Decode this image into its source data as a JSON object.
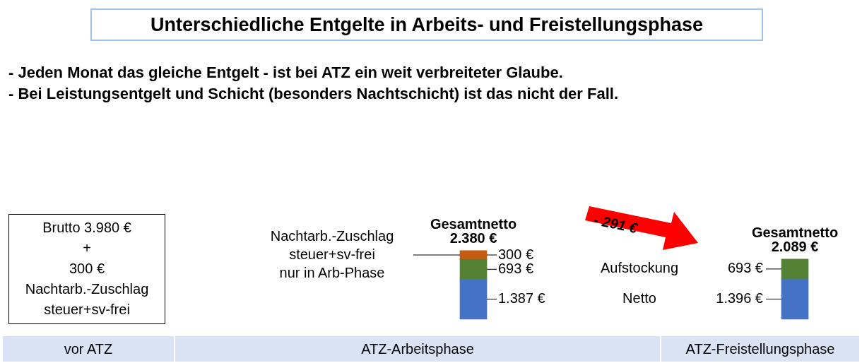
{
  "chart_data": {
    "type": "bar",
    "stacked": true,
    "title": "Unterschiedliche Entgelte in Arbeits- und Freistellungsphase",
    "subtitle": "- Jeden Monat das gleiche Entgelt - ist bei ATZ ein weit verbreiteter Glaube.\n- Bei Leistungsentgelt und Schicht (besonders Nachtschicht) ist das nicht der Fall.",
    "categories": [
      null,
      null
    ],
    "series": [
      {
        "color": "#4472c4",
        "values": [
          1387,
          1396
        ],
        "value_labels": [
          "1.387 €",
          "1.396 €"
        ]
      },
      {
        "color": "#548235",
        "values": [
          693,
          693
        ],
        "value_labels": [
          "693 €",
          "693 €"
        ]
      },
      {
        "color": "#c55a11",
        "values": [
          300,
          null
        ],
        "value_labels": [
          "300 €",
          null
        ]
      }
    ],
    "totals": [
      "Gesamtnetto\n2.380 €",
      "Gesamtnetto\n2.089 €"
    ],
    "annotations": [
      "Brutto 3.980 €\n+\n300 €\nNachtarb.-Zuschlag\nsteuer+sv-frei",
      "vor ATZ",
      "ATZ-Arbeitsphase",
      "ATZ-Freistellungsphase",
      "- 291 €",
      "Netto",
      "Aufstockung",
      "Nachtarb.-Zuschlag\nsteuer+sv-frei\nnur in Arb-Phase"
    ],
    "legend": false,
    "tick_labels": false
  }
}
